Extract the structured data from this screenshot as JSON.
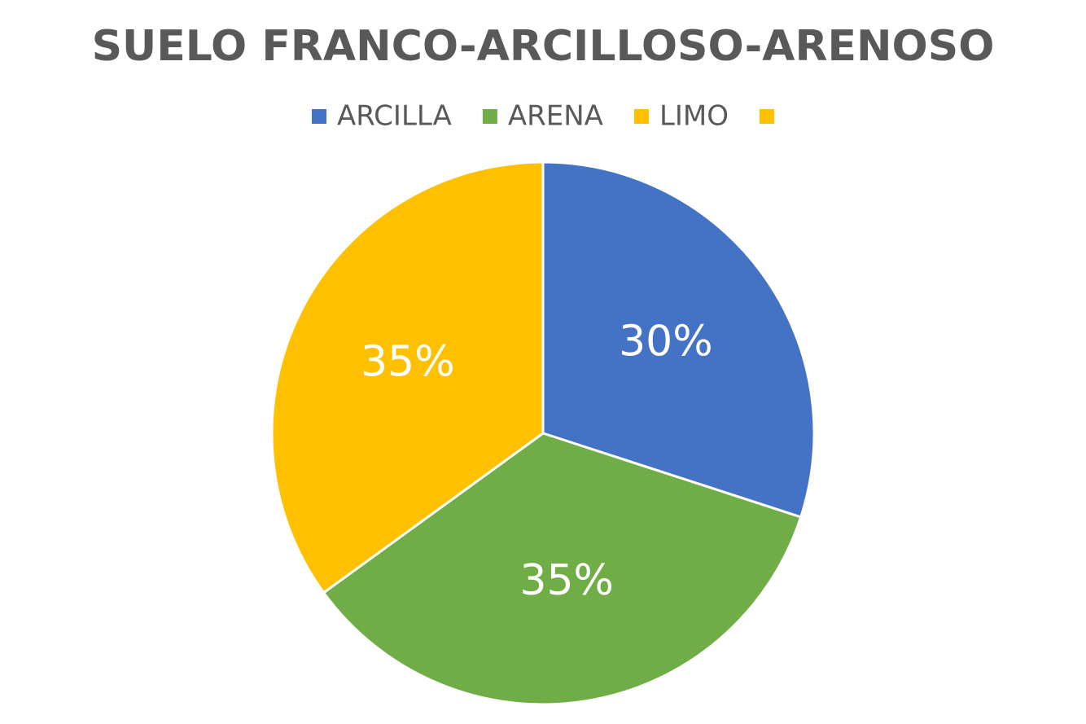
{
  "chart_data": {
    "type": "pie",
    "title": "SUELO FRANCO-ARCILLOSO-ARENOSO",
    "categories": [
      "ARCILLA",
      "ARENA",
      "LIMO",
      null
    ],
    "values": [
      30,
      35,
      35,
      0
    ],
    "value_labels": [
      "30%",
      "35%",
      "35%",
      null
    ],
    "colors": [
      "#4472c4",
      "#70ad47",
      "#ffc000",
      "#ffc000"
    ],
    "legend": "top"
  }
}
